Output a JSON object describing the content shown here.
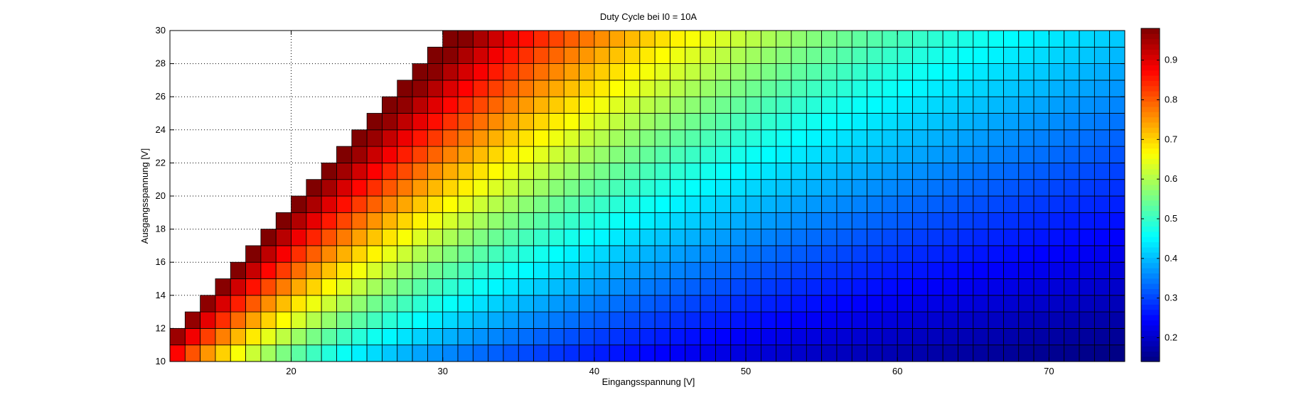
{
  "chart_data": {
    "type": "heatmap",
    "title": "Duty Cycle bei I0 = 10A",
    "xlabel": "Eingangsspannung [V]",
    "ylabel": "Ausgangsspannung [V]",
    "xlim": [
      12,
      75
    ],
    "ylim": [
      10,
      30
    ],
    "x_ticks": [
      20,
      30,
      40,
      50,
      60,
      70
    ],
    "y_ticks": [
      10,
      12,
      14,
      16,
      18,
      20,
      22,
      24,
      26,
      28,
      30
    ],
    "x_values": {
      "start": 12,
      "end": 75,
      "step": 1
    },
    "y_values": {
      "start": 10,
      "end": 30,
      "step": 1
    },
    "cell_value_model": "duty = (Vout + 0.4) / (Vin * 0.96 + 0.4)",
    "cell_shown_when": "Vout < Vin - 0.5",
    "grid": true,
    "colormap": "jet",
    "colorbar": {
      "clim": [
        0.14,
        0.98
      ],
      "ticks": [
        0.2,
        0.3,
        0.4,
        0.5,
        0.6,
        0.7,
        0.8,
        0.9
      ],
      "tick_labels": [
        "0.2",
        "0.3",
        "0.4",
        "0.5",
        "0.6",
        "0.7",
        "0.8",
        "0.9"
      ]
    }
  },
  "colors": {
    "background": "#ffffff",
    "cell_edge": "#000000",
    "grid": "#000000"
  }
}
